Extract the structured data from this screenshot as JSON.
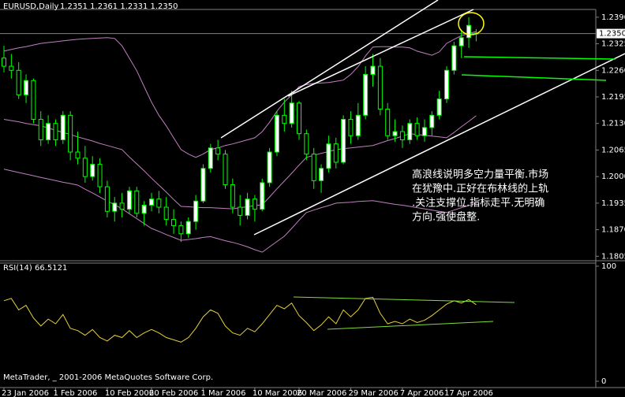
{
  "chart_data": [
    {
      "type": "candlestick",
      "title": "EURUSD,Daily",
      "header_values": "1.2351 1.2361 1.2331 1.2350",
      "annotation": [
        "高浪线说明多空力量平衡.市场",
        "在犹豫中.正好在布林线的上轨",
        ".关注支撑位.指标走平.无明确",
        "方向.强使盘整."
      ],
      "categories": [
        "23 Jan 2006",
        null,
        null,
        null,
        null,
        null,
        null,
        "1 Feb 2006",
        null,
        null,
        null,
        null,
        null,
        null,
        "10 Feb 2006",
        null,
        null,
        null,
        null,
        null,
        "20 Feb 2006",
        null,
        null,
        null,
        null,
        null,
        null,
        "1 Mar 2006",
        null,
        null,
        null,
        null,
        null,
        null,
        "10 Mar 2006",
        null,
        null,
        null,
        null,
        null,
        "20 Mar 2006",
        null,
        null,
        null,
        null,
        null,
        null,
        "29 Mar 2006",
        null,
        null,
        null,
        null,
        null,
        null,
        "7 Apr 2006",
        null,
        null,
        null,
        null,
        null,
        "17 Apr 2006",
        null,
        null,
        null,
        null
      ],
      "ohlc": [
        [
          1.229,
          1.232,
          1.2255,
          1.227
        ],
        [
          1.227,
          1.23,
          1.224,
          1.226
        ],
        [
          1.226,
          1.228,
          1.219,
          1.22
        ],
        [
          1.22,
          1.225,
          1.218,
          1.2235
        ],
        [
          1.2235,
          1.224,
          1.213,
          1.214
        ],
        [
          1.214,
          1.216,
          1.2075,
          1.209
        ],
        [
          1.209,
          1.215,
          1.208,
          1.213
        ],
        [
          1.213,
          1.214,
          1.2075,
          1.209
        ],
        [
          1.209,
          1.216,
          1.208,
          1.215
        ],
        [
          1.215,
          1.216,
          1.204,
          1.206
        ],
        [
          1.206,
          1.211,
          1.203,
          1.2045
        ],
        [
          1.2045,
          1.2075,
          1.1985,
          1.2
        ],
        [
          1.2,
          1.205,
          1.199,
          1.203
        ],
        [
          1.203,
          1.2045,
          1.196,
          1.1975
        ],
        [
          1.1975,
          1.199,
          1.19,
          1.1915
        ],
        [
          1.1915,
          1.195,
          1.189,
          1.1935
        ],
        [
          1.1935,
          1.196,
          1.19,
          1.192
        ],
        [
          1.192,
          1.1975,
          1.191,
          1.1965
        ],
        [
          1.1965,
          1.1975,
          1.19,
          1.191
        ],
        [
          1.191,
          1.194,
          1.188,
          1.193
        ],
        [
          1.193,
          1.196,
          1.1915,
          1.1945
        ],
        [
          1.1945,
          1.1965,
          1.191,
          1.1925
        ],
        [
          1.1925,
          1.195,
          1.188,
          1.1895
        ],
        [
          1.1895,
          1.192,
          1.186,
          1.188
        ],
        [
          1.188,
          1.189,
          1.184,
          1.186
        ],
        [
          1.186,
          1.19,
          1.185,
          1.189
        ],
        [
          1.189,
          1.1955,
          1.187,
          1.194
        ],
        [
          1.194,
          1.203,
          1.1935,
          1.202
        ],
        [
          1.202,
          1.208,
          1.201,
          1.207
        ],
        [
          1.207,
          1.209,
          1.204,
          1.2055
        ],
        [
          1.2055,
          1.2065,
          1.197,
          1.198
        ],
        [
          1.198,
          1.1995,
          1.191,
          1.1925
        ],
        [
          1.1925,
          1.1955,
          1.188,
          1.1905
        ],
        [
          1.1905,
          1.196,
          1.1895,
          1.1945
        ],
        [
          1.1945,
          1.1955,
          1.189,
          1.192
        ],
        [
          1.192,
          1.1995,
          1.1915,
          1.1985
        ],
        [
          1.1985,
          1.207,
          1.1975,
          1.206
        ],
        [
          1.206,
          1.216,
          1.205,
          1.215
        ],
        [
          1.215,
          1.219,
          1.211,
          1.213
        ],
        [
          1.213,
          1.221,
          1.212,
          1.218
        ],
        [
          1.218,
          1.2185,
          1.209,
          1.2105
        ],
        [
          1.2105,
          1.2115,
          1.204,
          1.2055
        ],
        [
          1.2055,
          1.207,
          1.197,
          1.199
        ],
        [
          1.199,
          1.203,
          1.196,
          1.202
        ],
        [
          1.202,
          1.21,
          1.201,
          1.208
        ],
        [
          1.208,
          1.2095,
          1.202,
          1.2035
        ],
        [
          1.2035,
          1.215,
          1.203,
          1.214
        ],
        [
          1.214,
          1.216,
          1.208,
          1.21
        ],
        [
          1.21,
          1.218,
          1.209,
          1.215
        ],
        [
          1.215,
          1.227,
          1.214,
          1.225
        ],
        [
          1.225,
          1.23,
          1.222,
          1.227
        ],
        [
          1.227,
          1.229,
          1.215,
          1.2165
        ],
        [
          1.2165,
          1.218,
          1.209,
          1.21
        ],
        [
          1.21,
          1.214,
          1.2085,
          1.211
        ],
        [
          1.211,
          1.2125,
          1.207,
          1.209
        ],
        [
          1.209,
          1.214,
          1.208,
          1.213
        ],
        [
          1.213,
          1.2145,
          1.209,
          1.21
        ],
        [
          1.21,
          1.214,
          1.2085,
          1.212
        ],
        [
          1.212,
          1.216,
          1.21,
          1.215
        ],
        [
          1.215,
          1.221,
          1.214,
          1.219
        ],
        [
          1.219,
          1.227,
          1.218,
          1.226
        ],
        [
          1.226,
          1.233,
          1.225,
          1.232
        ],
        [
          1.232,
          1.236,
          1.229,
          1.234
        ],
        [
          1.234,
          1.239,
          1.2315,
          1.237
        ],
        [
          1.2351,
          1.2361,
          1.2331,
          1.235
        ]
      ],
      "up_color": "#ffffff",
      "down_color": "#000000",
      "wick_color": "#00ff00",
      "series": [
        {
          "color": "#c080c0",
          "values": [
            1.2307,
            1.2311,
            1.2315,
            1.2318,
            1.2322,
            1.2326,
            1.2328,
            1.233,
            1.2332,
            1.2334,
            1.2336,
            1.2337,
            1.2338,
            1.2339,
            1.234,
            1.2338,
            1.232,
            1.229,
            1.2259,
            1.222,
            1.2182,
            1.215,
            1.2124,
            1.2095,
            1.2066,
            1.2055,
            1.2047,
            1.2055,
            1.2066,
            1.207,
            1.2076,
            1.208,
            1.2085,
            1.209,
            1.2095,
            1.211,
            1.2133,
            1.216,
            1.2182,
            1.22,
            1.222,
            1.2225,
            1.2228,
            1.2229,
            1.223,
            1.2233,
            1.2236,
            1.225,
            1.2269,
            1.2295,
            1.2317,
            1.2318,
            1.2318,
            1.2317,
            1.2317,
            1.2315,
            1.2307,
            1.2302,
            1.2297,
            1.2305,
            1.2326,
            1.2336,
            1.2345,
            1.235,
            1.2355
          ]
        },
        {
          "color": "#c080c0",
          "values": [
            1.214,
            1.2137,
            1.2134,
            1.213,
            1.2127,
            1.2124,
            1.2119,
            1.2113,
            1.2108,
            1.2103,
            1.2097,
            1.2092,
            1.2087,
            1.2081,
            1.2076,
            1.2071,
            1.2066,
            1.2048,
            1.2031,
            1.2014,
            1.1996,
            1.1979,
            1.1962,
            1.1944,
            1.1927,
            1.1926,
            1.1925,
            1.1924,
            1.1924,
            1.1923,
            1.1922,
            1.1921,
            1.1924,
            1.1926,
            1.1929,
            1.1931,
            1.195,
            1.197,
            1.1989,
            1.2008,
            1.2028,
            1.2047,
            1.2052,
            1.2057,
            1.2061,
            1.2066,
            1.2068,
            1.207,
            1.2072,
            1.2074,
            1.2076,
            1.2082,
            1.2088,
            1.2093,
            1.2099,
            1.2105,
            1.2103,
            1.2101,
            1.2099,
            1.2097,
            1.2095,
            1.2108,
            1.2122,
            1.2135,
            1.2149
          ]
        },
        {
          "color": "#c080c0",
          "values": [
            1.2018,
            1.2014,
            1.201,
            1.2006,
            1.2002,
            1.1998,
            1.1994,
            1.199,
            1.1986,
            1.1983,
            1.1979,
            1.1969,
            1.196,
            1.195,
            1.194,
            1.1931,
            1.1921,
            1.1909,
            1.1897,
            1.1885,
            1.1873,
            1.1866,
            1.1858,
            1.1851,
            1.1844,
            1.1846,
            1.1848,
            1.1851,
            1.1853,
            1.1848,
            1.1843,
            1.1839,
            1.1834,
            1.1828,
            1.1821,
            1.1815,
            1.1828,
            1.1841,
            1.1854,
            1.1873,
            1.1893,
            1.1912,
            1.1918,
            1.1924,
            1.1929,
            1.1935,
            1.1936,
            1.1937,
            1.1939,
            1.194,
            1.1941,
            1.1938,
            1.1935,
            1.1932,
            1.193,
            1.1927,
            1.1924,
            1.1921,
            1.1918,
            1.1915,
            1.1912,
            1.1918,
            1.1924,
            1.1929,
            1.1935
          ]
        }
      ],
      "current_price": {
        "value": 1.235,
        "label": "1.2350"
      },
      "ylim": [
        1.1794,
        1.2409
      ],
      "yticks": [
        {
          "value": 1.239,
          "label": "1.2390"
        },
        1.2325,
        {
          "value": 1.226,
          "label": "1.2260"
        },
        1.2195,
        {
          "value": 1.213,
          "label": "1.2130"
        },
        1.2065,
        {
          "value": 1.2,
          "label": "1.2000"
        },
        1.1935,
        {
          "value": 1.187,
          "label": "1.1870"
        },
        1.1805
      ],
      "grid": false
    },
    {
      "type": "line",
      "title": "RSI(14) 66.5121",
      "footer": "MetaTrader, _ 2001-2006 MetaQuotes Software Corp.",
      "series": [
        {
          "color": "#e6d03c",
          "values": [
            70,
            72,
            62,
            66,
            55,
            48,
            54,
            50,
            58,
            46,
            44,
            40,
            45,
            38,
            35,
            40,
            38,
            44,
            38,
            42,
            45,
            42,
            38,
            36,
            34,
            38,
            46,
            56,
            62,
            59,
            48,
            42,
            40,
            46,
            43,
            50,
            58,
            66,
            63,
            68,
            57,
            51,
            44,
            49,
            56,
            50,
            62,
            56,
            62,
            72,
            73,
            59,
            50,
            52,
            50,
            54,
            51,
            53,
            57,
            62,
            67,
            70,
            68,
            71,
            66.5121
          ]
        }
      ],
      "ylim": [
        -5.5,
        102.7
      ],
      "yticks": [
        0,
        100
      ],
      "grid": false
    }
  ]
}
